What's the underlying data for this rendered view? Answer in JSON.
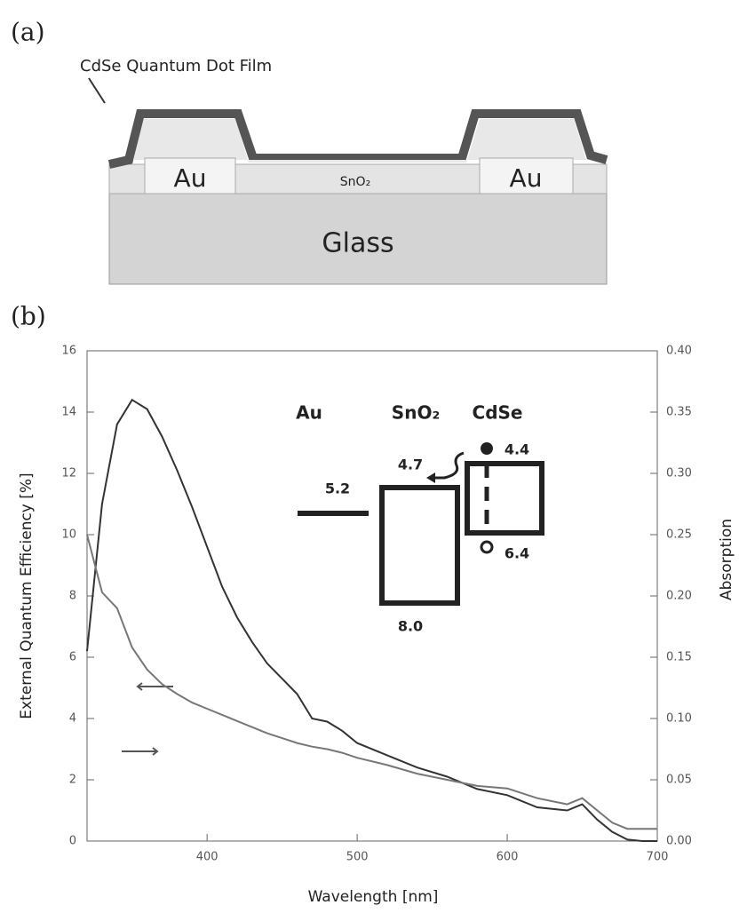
{
  "panel_a": {
    "label": "(a)",
    "film_label": "CdSe Quantum Dot Film",
    "electrode_left": "Au",
    "electrode_right": "Au",
    "layer": "SnO₂",
    "substrate": "Glass"
  },
  "panel_b": {
    "label": "(b)",
    "inset": {
      "au": "Au",
      "sno2": "SnO₂",
      "cdse": "CdSe",
      "au_level": "5.2",
      "sno2_cb": "4.7",
      "sno2_vb": "8.0",
      "cdse_cb": "4.4",
      "cdse_vb": "6.4"
    }
  },
  "chart_data": {
    "type": "line",
    "x_label": "Wavelength [nm]",
    "y_label": "External Quantum Efficiency [%]",
    "y2_label": "Absorption",
    "x": [
      320,
      330,
      340,
      350,
      360,
      370,
      380,
      390,
      400,
      410,
      420,
      430,
      440,
      450,
      460,
      470,
      480,
      490,
      500,
      520,
      540,
      560,
      580,
      600,
      620,
      640,
      650,
      660,
      670,
      680,
      690,
      700
    ],
    "series": [
      {
        "color": "#333333",
        "values": [
          6.2,
          11,
          13.6,
          14.4,
          14.1,
          13.2,
          12.1,
          10.9,
          9.6,
          8.3,
          7.3,
          6.5,
          5.8,
          5.3,
          4.8,
          4.0,
          3.9,
          3.6,
          3.2,
          2.8,
          2.4,
          2.1,
          1.7,
          1.5,
          1.1,
          1.0,
          1.2,
          0.7,
          0.3,
          0.05,
          0,
          0
        ]
      },
      {
        "color": "#777777",
        "axis": "y2",
        "values": [
          0.25,
          0.203,
          0.19,
          0.158,
          0.14,
          0.128,
          0.12,
          0.113,
          0.108,
          0.103,
          0.098,
          0.093,
          0.088,
          0.084,
          0.08,
          0.077,
          0.075,
          0.072,
          0.068,
          0.062,
          0.055,
          0.05,
          0.045,
          0.043,
          0.035,
          0.03,
          0.035,
          0.025,
          0.015,
          0.01,
          0.01,
          0.01
        ]
      }
    ],
    "xlim": [
      320,
      700
    ],
    "xticks": [
      400,
      500,
      600,
      700
    ],
    "ylim": [
      0,
      16
    ],
    "yticks": [
      0,
      2,
      4,
      6,
      8,
      10,
      12,
      14,
      16
    ],
    "y2lim": [
      0,
      0.4
    ],
    "y2ticks": [
      {
        "value": 0,
        "label": "0.00"
      },
      {
        "value": 0.05,
        "label": "0.05"
      },
      {
        "value": 0.1,
        "label": "0.10"
      },
      {
        "value": 0.15,
        "label": "0.15"
      },
      {
        "value": 0.2,
        "label": "0.20"
      },
      {
        "value": 0.25,
        "label": "0.25"
      },
      {
        "value": 0.3,
        "label": "0.30"
      },
      {
        "value": 0.35,
        "label": "0.35"
      },
      {
        "value": 0.4,
        "label": "0.40"
      }
    ]
  }
}
